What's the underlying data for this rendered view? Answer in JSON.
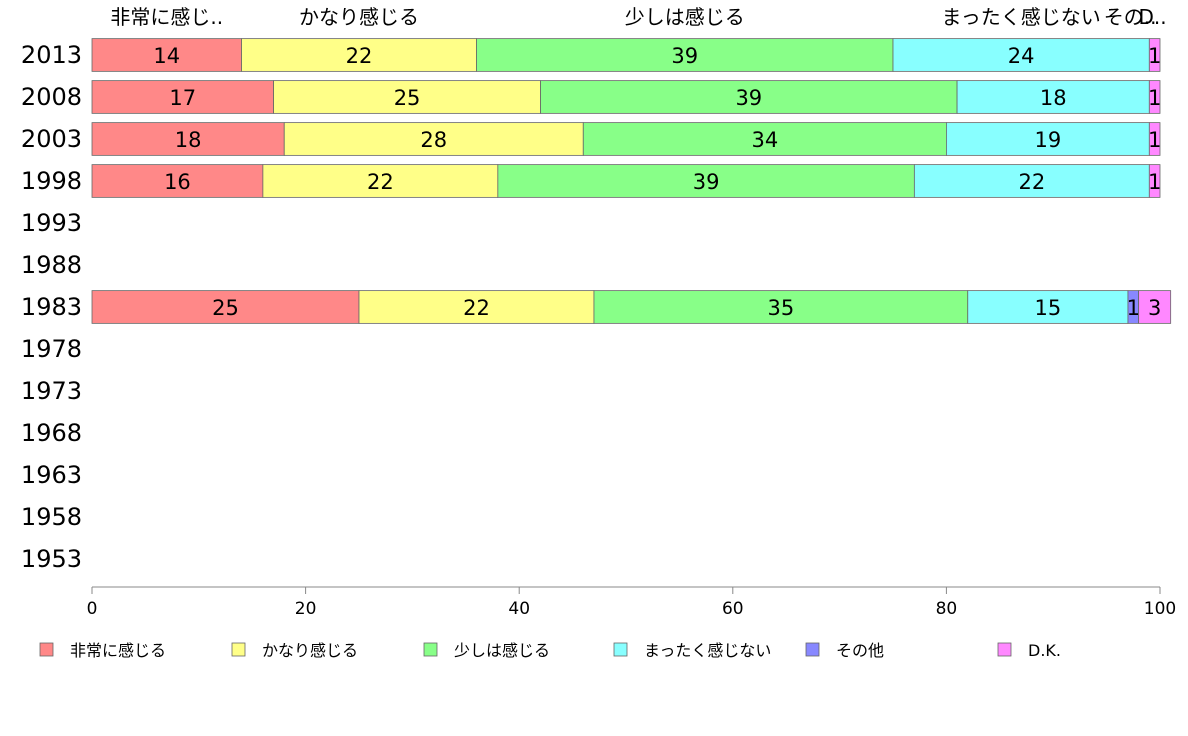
{
  "chart_data": {
    "type": "bar",
    "orientation": "horizontal",
    "stacked": true,
    "categories": [
      "2013",
      "2008",
      "2003",
      "1998",
      "1993",
      "1988",
      "1983",
      "1978",
      "1973",
      "1968",
      "1963",
      "1958",
      "1953"
    ],
    "series": [
      {
        "name": "非常に感じる",
        "color": "#ff8888",
        "values": [
          14,
          17,
          18,
          16,
          null,
          null,
          25,
          null,
          null,
          null,
          null,
          null,
          null
        ]
      },
      {
        "name": "かなり感じる",
        "color": "#ffff88",
        "values": [
          22,
          25,
          28,
          22,
          null,
          null,
          22,
          null,
          null,
          null,
          null,
          null,
          null
        ]
      },
      {
        "name": "少しは感じる",
        "color": "#88ff88",
        "values": [
          39,
          39,
          34,
          39,
          null,
          null,
          35,
          null,
          null,
          null,
          null,
          null,
          null
        ]
      },
      {
        "name": "まったく感じない",
        "color": "#88ffff",
        "values": [
          24,
          18,
          19,
          22,
          null,
          null,
          15,
          null,
          null,
          null,
          null,
          null,
          null
        ]
      },
      {
        "name": "その他",
        "color": "#8888ff",
        "values": [
          0,
          0,
          0,
          0,
          null,
          null,
          1,
          null,
          null,
          null,
          null,
          null,
          null
        ]
      },
      {
        "name": "D.K.",
        "color": "#ff88ff",
        "values": [
          1,
          1,
          1,
          1,
          null,
          null,
          3,
          null,
          null,
          null,
          null,
          null,
          null
        ]
      }
    ],
    "top_labels": [
      "非常に感じ..",
      "かなり感じる",
      "少しは感じる",
      "まったく感じない",
      "その..",
      "D.."
    ],
    "xlim": [
      0,
      100
    ],
    "xticks": [
      "0",
      "20",
      "40",
      "60",
      "80",
      "100"
    ],
    "legend_position": "bottom",
    "grid": false
  }
}
